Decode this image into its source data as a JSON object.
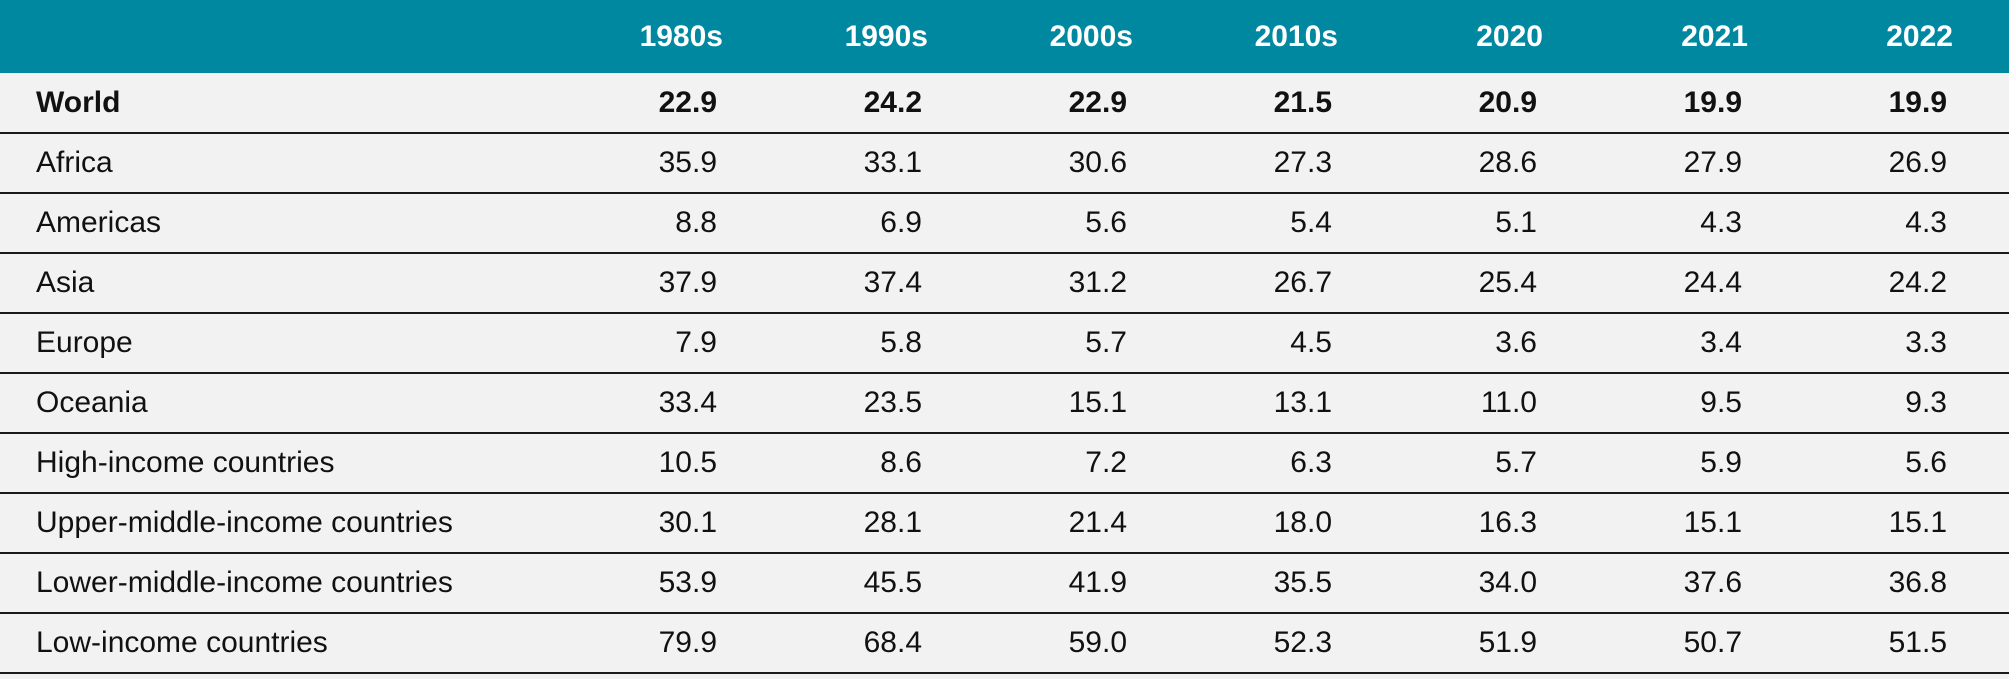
{
  "table": {
    "columns": [
      "",
      "1980s",
      "1990s",
      "2000s",
      "2010s",
      "2020",
      "2021",
      "2022"
    ],
    "rows": [
      {
        "label": "World",
        "values": [
          "22.9",
          "24.2",
          "22.9",
          "21.5",
          "20.9",
          "19.9",
          "19.9"
        ],
        "bold": true
      },
      {
        "label": "Africa",
        "values": [
          "35.9",
          "33.1",
          "30.6",
          "27.3",
          "28.6",
          "27.9",
          "26.9"
        ]
      },
      {
        "label": "Americas",
        "values": [
          "8.8",
          "6.9",
          "5.6",
          "5.4",
          "5.1",
          "4.3",
          "4.3"
        ]
      },
      {
        "label": "Asia",
        "values": [
          "37.9",
          "37.4",
          "31.2",
          "26.7",
          "25.4",
          "24.4",
          "24.2"
        ]
      },
      {
        "label": "Europe",
        "values": [
          "7.9",
          "5.8",
          "5.7",
          "4.5",
          "3.6",
          "3.4",
          "3.3"
        ]
      },
      {
        "label": "Oceania",
        "values": [
          "33.4",
          "23.5",
          "15.1",
          "13.1",
          "11.0",
          "9.5",
          "9.3"
        ]
      },
      {
        "label": "High-income countries",
        "values": [
          "10.5",
          "8.6",
          "7.2",
          "6.3",
          "5.7",
          "5.9",
          "5.6"
        ]
      },
      {
        "label": "Upper-middle-income countries",
        "values": [
          "30.1",
          "28.1",
          "21.4",
          "18.0",
          "16.3",
          "15.1",
          "15.1"
        ]
      },
      {
        "label": "Lower-middle-income countries",
        "values": [
          "53.9",
          "45.5",
          "41.9",
          "35.5",
          "34.0",
          "37.6",
          "36.8"
        ]
      },
      {
        "label": "Low-income countries",
        "values": [
          "79.9",
          "68.4",
          "59.0",
          "52.3",
          "51.9",
          "50.7",
          "51.5"
        ]
      }
    ]
  },
  "colors": {
    "header_background": "#0088a1",
    "header_text": "#ffffff",
    "body_background": "#f2f2f2",
    "row_divider": "#1a1a1a"
  }
}
